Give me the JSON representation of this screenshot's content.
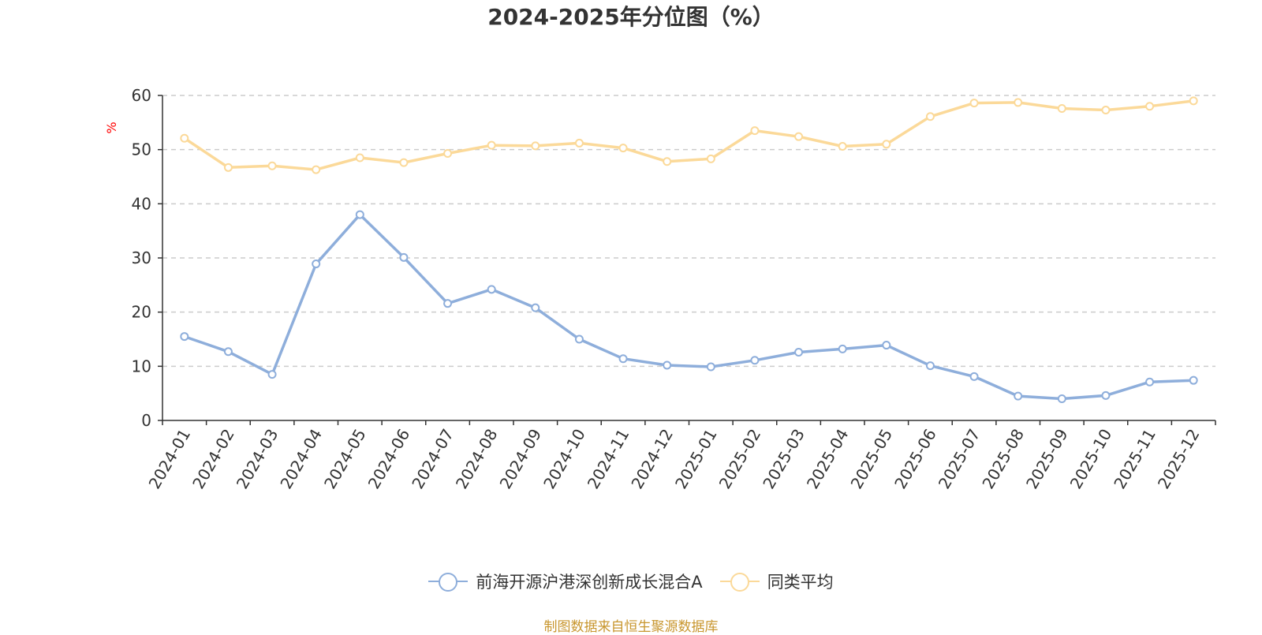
{
  "chart_data": {
    "type": "line",
    "title": "2024-2025年分位图（%）",
    "xlabel": "",
    "ylabel": "%",
    "ylim": [
      0,
      60
    ],
    "yticks": [
      0,
      10,
      20,
      30,
      40,
      50,
      60
    ],
    "grid": true,
    "legend_position": "bottom",
    "categories": [
      "2024-01",
      "2024-02",
      "2024-03",
      "2024-04",
      "2024-05",
      "2024-06",
      "2024-07",
      "2024-08",
      "2024-09",
      "2024-10",
      "2024-11",
      "2024-12",
      "2025-01",
      "2025-02",
      "2025-03",
      "2025-04",
      "2025-05",
      "2025-06",
      "2025-07",
      "2025-08",
      "2025-09",
      "2025-10",
      "2025-11",
      "2025-12"
    ],
    "series": [
      {
        "name": "前海开源沪港深创新成长混合A",
        "color": "#8eaedb",
        "values": [
          15.5,
          12.7,
          8.5,
          28.9,
          38.0,
          30.1,
          21.6,
          24.2,
          20.8,
          15.0,
          11.4,
          10.2,
          9.9,
          11.1,
          12.6,
          13.2,
          13.9,
          10.1,
          8.1,
          4.5,
          4.0,
          4.6,
          7.1,
          7.4
        ]
      },
      {
        "name": "同类平均",
        "color": "#fbd999",
        "values": [
          52.1,
          46.7,
          47.0,
          46.3,
          48.5,
          47.6,
          49.3,
          50.8,
          50.7,
          51.2,
          50.3,
          47.8,
          48.3,
          53.5,
          52.4,
          50.6,
          51.0,
          56.1,
          58.6,
          58.7,
          57.6,
          57.3,
          58.0,
          59.0
        ]
      }
    ]
  },
  "ylabel_color": "#ff0000",
  "source": "制图数据来自恒生聚源数据库"
}
